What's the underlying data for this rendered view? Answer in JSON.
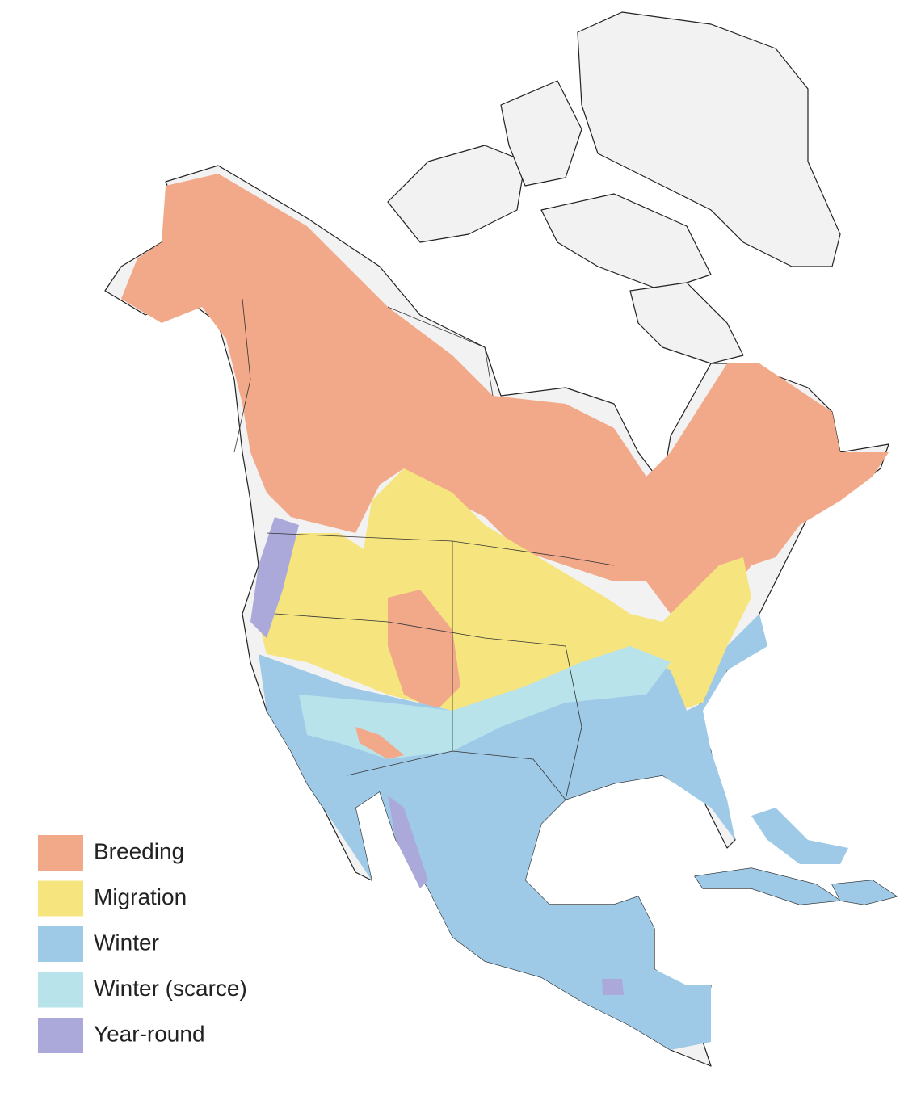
{
  "legend": [
    {
      "label": "Breeding",
      "color": "#f2a98a"
    },
    {
      "label": "Migration",
      "color": "#f6e57f"
    },
    {
      "label": "Winter",
      "color": "#9ecae7"
    },
    {
      "label": "Winter (scarce)",
      "color": "#b8e3ea"
    },
    {
      "label": "Year-round",
      "color": "#aaa9d9"
    }
  ]
}
